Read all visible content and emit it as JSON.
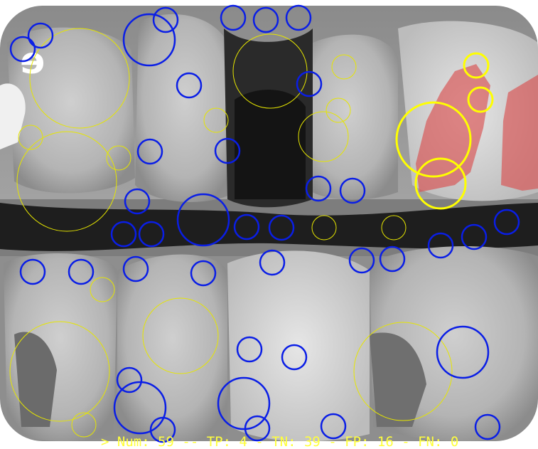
{
  "image": {
    "orientation_mark": "e",
    "stats_text": "> Num: 59 -- TP: 4 - TN: 39 - FP: 16 - FN: 0"
  },
  "colors": {
    "negative_circle": "#0a1ee6",
    "positive_circle": "#ffff00",
    "small_positive_circle": "#e6e600",
    "highlight_region": "#d85050",
    "stats_text": "#ffff3c"
  },
  "annotation_types": {
    "blue": "negative-marker",
    "yellow": "positive-marker",
    "red": "highlighted-region"
  }
}
